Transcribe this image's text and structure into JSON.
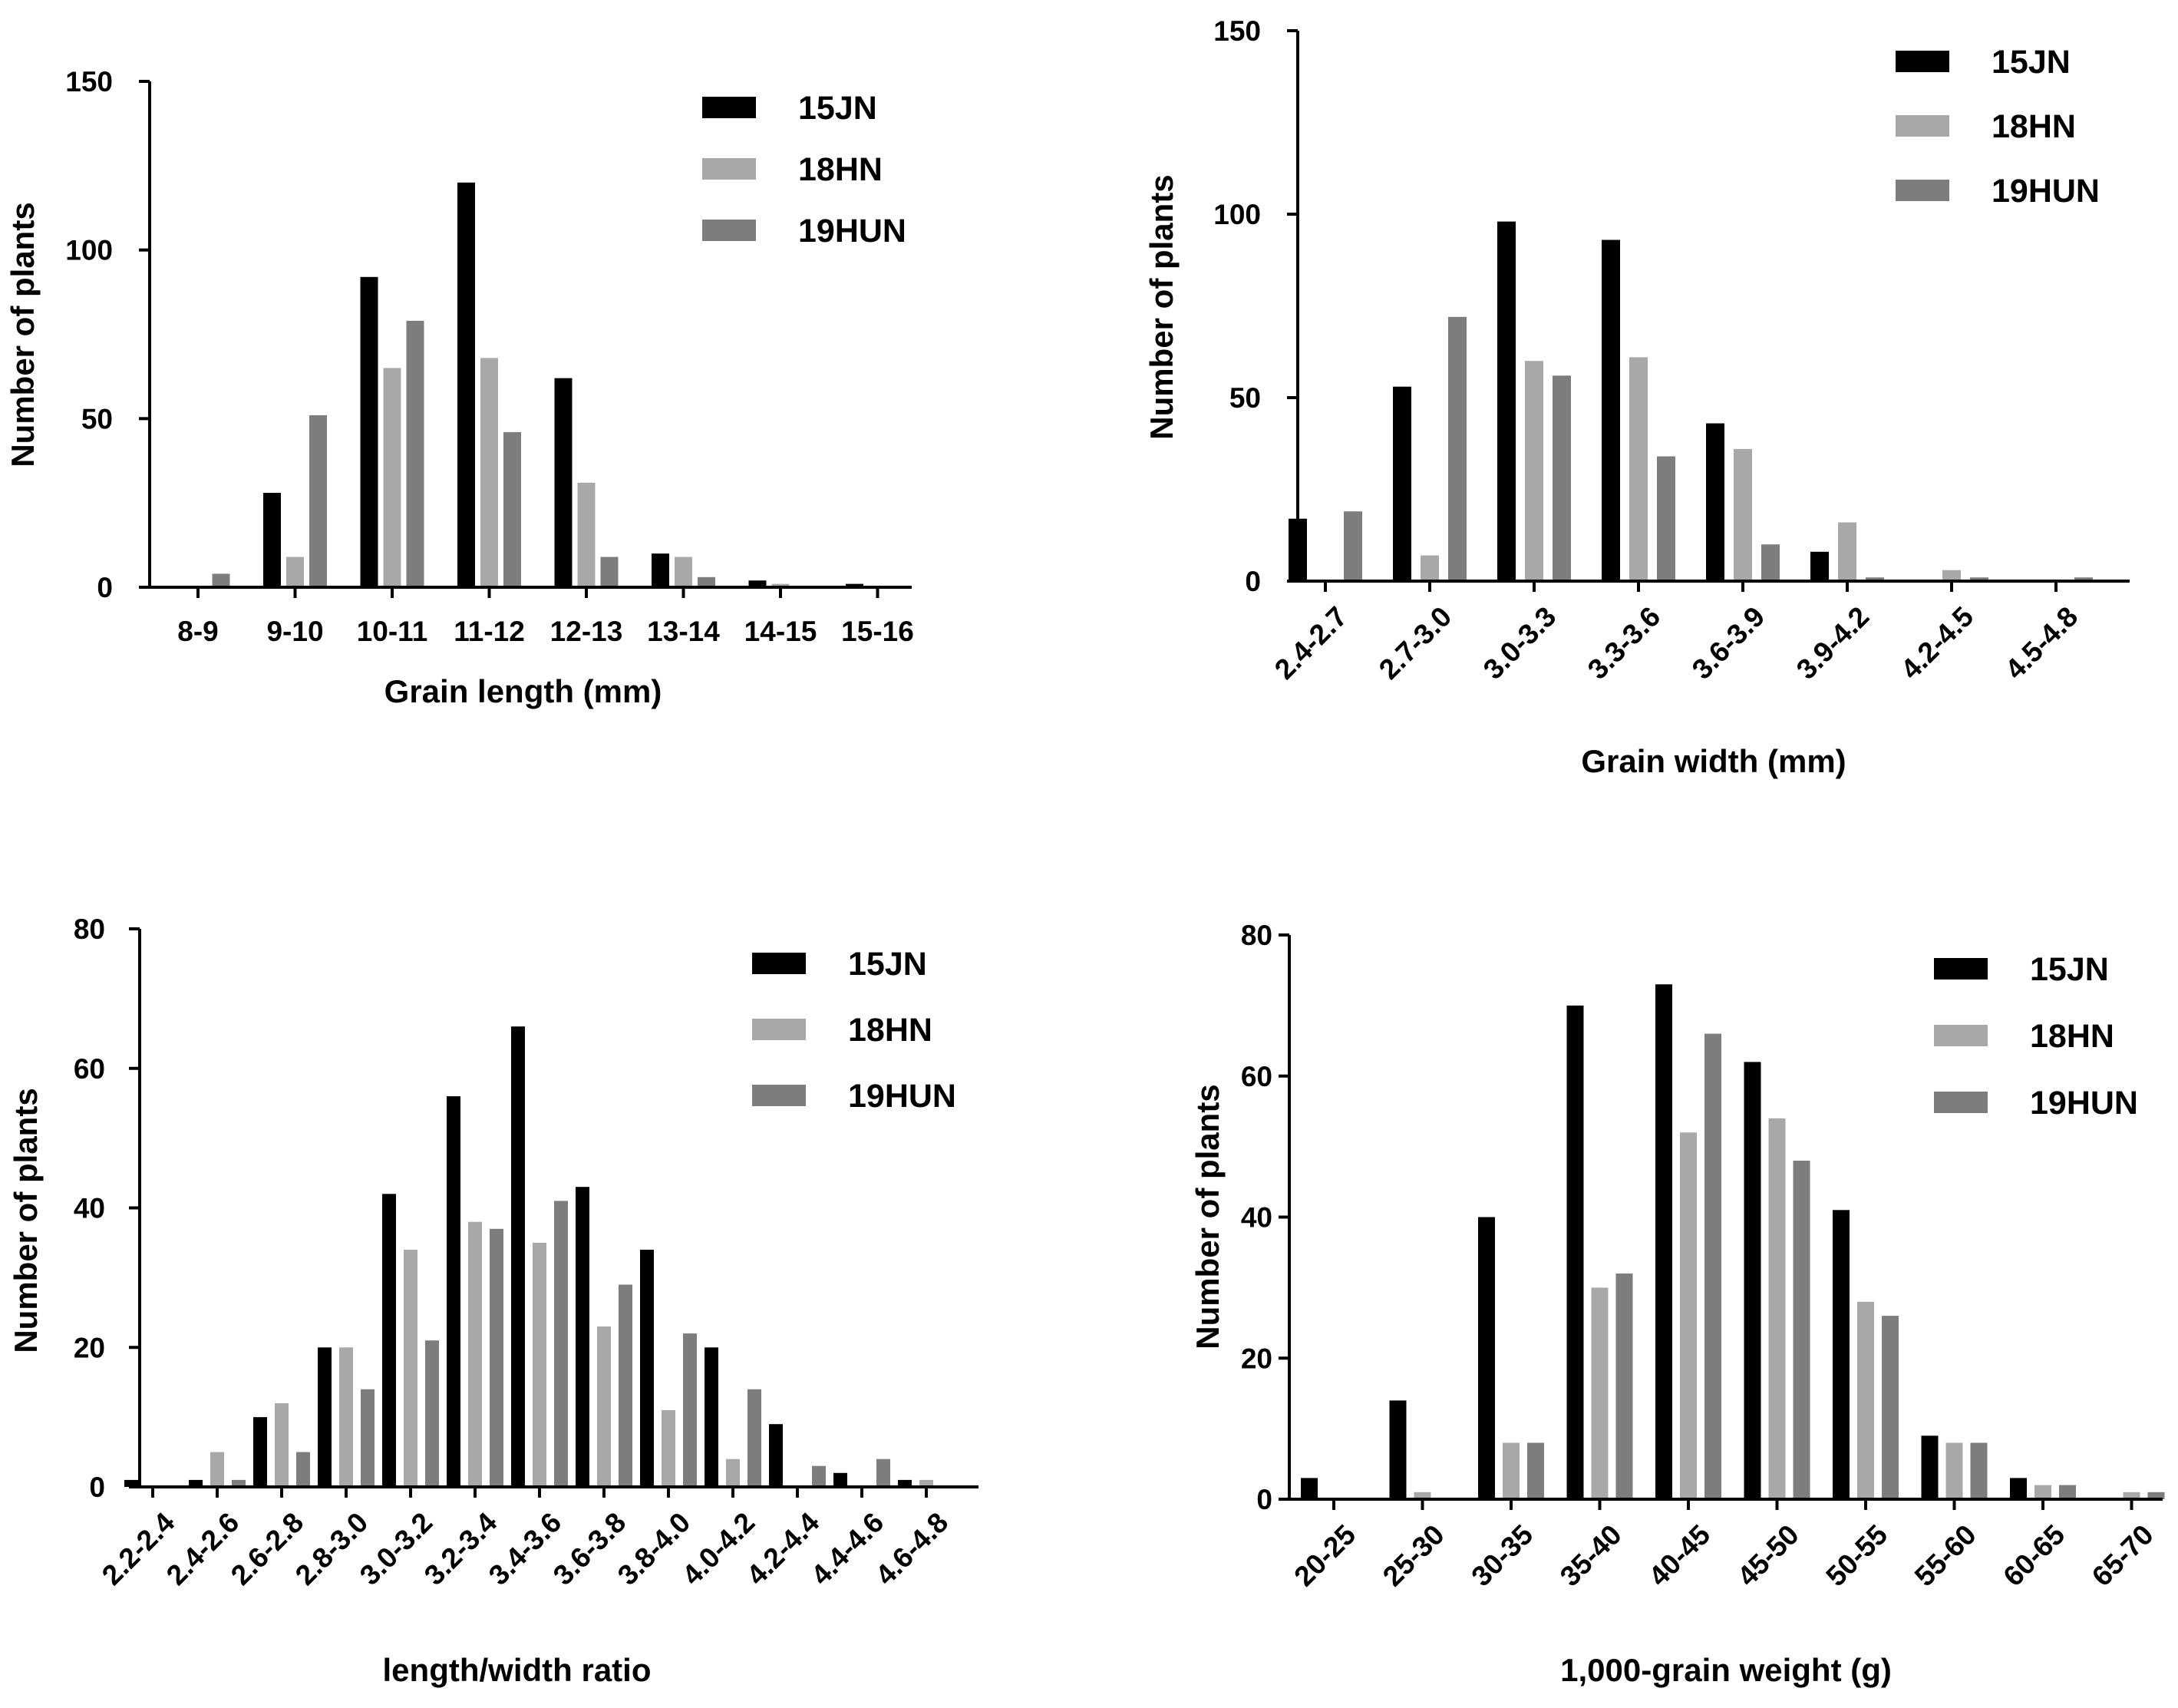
{
  "colors": {
    "15JN": "#000000",
    "18HN": "#a8a8a8",
    "19HUN": "#7d7d7d",
    "axis": "#000000"
  },
  "chart_data": [
    {
      "type": "bar",
      "title": "",
      "xlabel": "Grain length (mm)",
      "ylabel": "Number of plants",
      "ylim": [
        0,
        150
      ],
      "yticks": [
        0,
        50,
        100,
        150
      ],
      "legend_position": "top-right",
      "categories": [
        "8-9",
        "9-10",
        "10-11",
        "11-12",
        "12-13",
        "13-14",
        "14-15",
        "15-16"
      ],
      "series": [
        {
          "name": "15JN",
          "values": [
            0,
            28,
            92,
            120,
            62,
            10,
            2,
            1
          ]
        },
        {
          "name": "18HN",
          "values": [
            0,
            9,
            65,
            68,
            31,
            9,
            1,
            0
          ]
        },
        {
          "name": "19HUN",
          "values": [
            4,
            51,
            79,
            46,
            9,
            3,
            0,
            0
          ]
        }
      ]
    },
    {
      "type": "bar",
      "title": "",
      "xlabel": "Grain width (mm)",
      "ylabel": "Number of plants",
      "ylim": [
        0,
        150
      ],
      "yticks": [
        0,
        50,
        100,
        150
      ],
      "legend_position": "top-right",
      "categories": [
        "2.4-2.7",
        "2.7-3.0",
        "3.0-3.3",
        "3.3-3.6",
        "3.6-3.9",
        "3.9-4.2",
        "4.2-4.5",
        "4.5-4.8"
      ],
      "series": [
        {
          "name": "15JN",
          "values": [
            17,
            53,
            98,
            93,
            43,
            8,
            0,
            0
          ]
        },
        {
          "name": "18HN",
          "values": [
            0,
            7,
            60,
            61,
            36,
            16,
            3,
            0
          ]
        },
        {
          "name": "19HUN",
          "values": [
            19,
            72,
            56,
            34,
            10,
            1,
            1,
            1
          ]
        }
      ]
    },
    {
      "type": "bar",
      "title": "",
      "xlabel": "length/width ratio",
      "ylabel": "Number of plants",
      "ylim": [
        0,
        80
      ],
      "yticks": [
        0,
        20,
        40,
        60,
        80
      ],
      "legend_position": "top-right",
      "categories": [
        "2.2-2.4",
        "2.4-2.6",
        "2.6-2.8",
        "2.8-3.0",
        "3.0-3.2",
        "3.2-3.4",
        "3.4-3.6",
        "3.6-3.8",
        "3.8-4.0",
        "4.0-4.2",
        "4.2-4.4",
        "4.4-4.6",
        "4.6-4.8"
      ],
      "series": [
        {
          "name": "15JN",
          "values": [
            1,
            1,
            10,
            20,
            42,
            56,
            66,
            43,
            34,
            20,
            9,
            2,
            1
          ]
        },
        {
          "name": "18HN",
          "values": [
            0,
            5,
            12,
            20,
            34,
            38,
            35,
            23,
            11,
            4,
            0,
            0,
            1
          ]
        },
        {
          "name": "19HUN",
          "values": [
            0,
            1,
            5,
            14,
            21,
            37,
            41,
            29,
            22,
            14,
            3,
            4,
            0
          ]
        }
      ]
    },
    {
      "type": "bar",
      "title": "",
      "xlabel": "1,000-grain weight (g)",
      "ylabel": "Number of plants",
      "ylim": [
        0,
        80
      ],
      "yticks": [
        0,
        20,
        40,
        60,
        80
      ],
      "legend_position": "top-right",
      "categories": [
        "20-25",
        "25-30",
        "30-35",
        "35-40",
        "40-45",
        "45-50",
        "50-55",
        "55-60",
        "60-65",
        "65-70"
      ],
      "series": [
        {
          "name": "15JN",
          "values": [
            3,
            14,
            40,
            70,
            73,
            62,
            41,
            9,
            3,
            0
          ]
        },
        {
          "name": "18HN",
          "values": [
            0,
            1,
            8,
            30,
            52,
            54,
            28,
            8,
            2,
            1
          ]
        },
        {
          "name": "19HUN",
          "values": [
            0,
            0,
            8,
            32,
            66,
            48,
            26,
            8,
            2,
            1
          ]
        }
      ]
    }
  ]
}
